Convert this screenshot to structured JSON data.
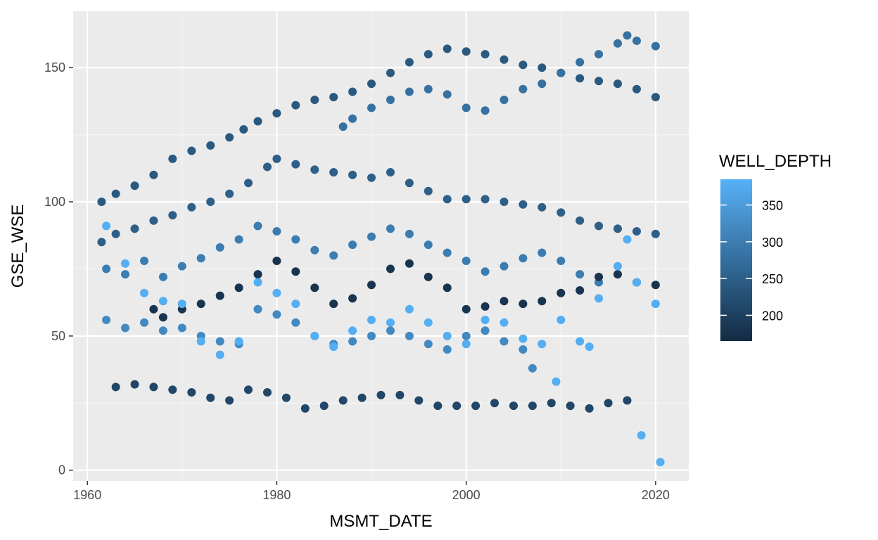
{
  "chart_data": {
    "type": "scatter",
    "title": "",
    "xlabel": "MSMT_DATE",
    "ylabel": "GSE_WSE",
    "xlim": [
      1958.5,
      2023.5
    ],
    "ylim": [
      -4,
      171
    ],
    "x_ticks": [
      1960,
      1980,
      2000,
      2020
    ],
    "y_ticks": [
      0,
      50,
      100,
      150
    ],
    "x_tick_labels": [
      "1960",
      "1980",
      "2000",
      "2020"
    ],
    "y_tick_labels": [
      "0",
      "50",
      "100",
      "150"
    ],
    "grid": true,
    "legend": {
      "title": "WELL_DEPTH",
      "placement": "right",
      "type": "colorbar",
      "range": [
        165,
        385
      ],
      "ticks": [
        200,
        250,
        300,
        350
      ],
      "tick_labels": [
        "200",
        "250",
        "300",
        "350"
      ],
      "low_color": "#132b43",
      "high_color": "#56b1f7"
    },
    "colors": {
      "panel_background": "#ebebeb",
      "grid_major": "#ffffff",
      "grid_minor": "#f5f5f5",
      "tick_text": "#4d4d4d"
    },
    "series": [
      {
        "depth": 240,
        "points": [
          [
            1961.5,
            100
          ],
          [
            1963,
            103
          ],
          [
            1965,
            106
          ],
          [
            1967,
            110
          ],
          [
            1969,
            116
          ],
          [
            1971,
            119
          ],
          [
            1973,
            121
          ],
          [
            1975,
            124
          ],
          [
            1976.5,
            127
          ],
          [
            1978,
            130
          ],
          [
            1980,
            133
          ],
          [
            1982,
            136
          ],
          [
            1984,
            138
          ],
          [
            1986,
            139
          ],
          [
            1988,
            141
          ],
          [
            1990,
            144
          ],
          [
            1992,
            148
          ],
          [
            1994,
            152
          ],
          [
            1996,
            155
          ],
          [
            1998,
            157
          ],
          [
            2000,
            156
          ],
          [
            2002,
            155
          ],
          [
            2004,
            153
          ],
          [
            2006,
            151
          ],
          [
            2008,
            150
          ],
          [
            2010,
            148
          ],
          [
            2012,
            146
          ],
          [
            2014,
            145
          ],
          [
            2016,
            144
          ],
          [
            2018,
            142
          ],
          [
            2020,
            139
          ]
        ]
      },
      {
        "depth": 280,
        "points": [
          [
            1987,
            128
          ],
          [
            1988,
            131
          ],
          [
            1990,
            135
          ],
          [
            1992,
            138
          ],
          [
            1994,
            141
          ],
          [
            1996,
            142
          ],
          [
            1998,
            140
          ],
          [
            2000,
            135
          ],
          [
            2002,
            134
          ],
          [
            2004,
            138
          ],
          [
            2006,
            142
          ],
          [
            2008,
            144
          ],
          [
            2010,
            148
          ],
          [
            2012,
            152
          ],
          [
            2014,
            155
          ],
          [
            2016,
            159
          ],
          [
            2017,
            162
          ],
          [
            2018,
            160
          ],
          [
            2020,
            158
          ]
        ]
      },
      {
        "depth": 250,
        "points": [
          [
            1961.5,
            85
          ],
          [
            1963,
            88
          ],
          [
            1965,
            90
          ],
          [
            1967,
            93
          ],
          [
            1969,
            95
          ],
          [
            1971,
            98
          ],
          [
            1973,
            100
          ],
          [
            1975,
            103
          ],
          [
            1977,
            107
          ],
          [
            1979,
            113
          ],
          [
            1980,
            116
          ],
          [
            1982,
            114
          ],
          [
            1984,
            112
          ],
          [
            1986,
            111
          ],
          [
            1988,
            110
          ],
          [
            1990,
            109
          ],
          [
            1992,
            111
          ],
          [
            1994,
            107
          ],
          [
            1996,
            104
          ],
          [
            1998,
            101
          ],
          [
            2000,
            101
          ],
          [
            2002,
            101
          ],
          [
            2004,
            100
          ],
          [
            2006,
            99
          ],
          [
            2008,
            98
          ],
          [
            2010,
            96
          ],
          [
            2012,
            93
          ],
          [
            2014,
            91
          ],
          [
            2016,
            90
          ],
          [
            2018,
            89
          ],
          [
            2020,
            88
          ]
        ]
      },
      {
        "depth": 300,
        "points": [
          [
            1962,
            75
          ],
          [
            1964,
            73
          ],
          [
            1966,
            78
          ],
          [
            1968,
            72
          ],
          [
            1970,
            76
          ],
          [
            1972,
            79
          ],
          [
            1974,
            83
          ],
          [
            1976,
            86
          ],
          [
            1978,
            91
          ],
          [
            1980,
            89
          ],
          [
            1982,
            86
          ],
          [
            1984,
            82
          ],
          [
            1986,
            80
          ],
          [
            1988,
            84
          ],
          [
            1990,
            87
          ],
          [
            1992,
            90
          ],
          [
            1994,
            88
          ],
          [
            1996,
            84
          ],
          [
            1998,
            81
          ],
          [
            2000,
            78
          ],
          [
            2002,
            74
          ],
          [
            2004,
            76
          ],
          [
            2006,
            79
          ],
          [
            2008,
            81
          ],
          [
            2010,
            78
          ],
          [
            2012,
            73
          ],
          [
            2014,
            70
          ]
        ]
      },
      {
        "depth": 320,
        "points": [
          [
            1962,
            56
          ],
          [
            1964,
            53
          ],
          [
            1966,
            55
          ],
          [
            1968,
            52
          ],
          [
            1970,
            53
          ],
          [
            1972,
            50
          ],
          [
            1974,
            48
          ],
          [
            1976,
            47
          ],
          [
            1978,
            60
          ],
          [
            1980,
            58
          ],
          [
            1982,
            55
          ],
          [
            1984,
            50
          ],
          [
            1986,
            47
          ],
          [
            1988,
            48
          ],
          [
            1990,
            50
          ],
          [
            1992,
            52
          ],
          [
            1994,
            50
          ],
          [
            1996,
            47
          ],
          [
            1998,
            45
          ],
          [
            2000,
            50
          ],
          [
            2002,
            52
          ],
          [
            2004,
            48
          ],
          [
            2006,
            45
          ],
          [
            2007,
            38
          ]
        ]
      },
      {
        "depth": 180,
        "points": [
          [
            1967,
            60
          ],
          [
            1968,
            57
          ],
          [
            1970,
            60
          ],
          [
            1972,
            62
          ],
          [
            1974,
            65
          ],
          [
            1976,
            68
          ],
          [
            1978,
            73
          ],
          [
            1980,
            78
          ],
          [
            1982,
            74
          ],
          [
            1984,
            68
          ],
          [
            1986,
            62
          ],
          [
            1988,
            64
          ],
          [
            1990,
            69
          ],
          [
            1992,
            75
          ],
          [
            1994,
            77
          ],
          [
            1996,
            72
          ],
          [
            1998,
            68
          ],
          [
            2000,
            60
          ],
          [
            2002,
            61
          ],
          [
            2004,
            63
          ],
          [
            2006,
            62
          ],
          [
            2008,
            63
          ],
          [
            2010,
            66
          ],
          [
            2012,
            67
          ],
          [
            2014,
            72
          ],
          [
            2016,
            73
          ],
          [
            2018,
            70
          ],
          [
            2020,
            69
          ]
        ]
      },
      {
        "depth": 380,
        "points": [
          [
            1962,
            91
          ],
          [
            1964,
            77
          ],
          [
            1966,
            66
          ],
          [
            1968,
            63
          ],
          [
            1970,
            62
          ],
          [
            1972,
            48
          ],
          [
            1974,
            43
          ],
          [
            1976,
            48
          ],
          [
            1978,
            70
          ],
          [
            1980,
            66
          ],
          [
            1982,
            62
          ],
          [
            1984,
            50
          ],
          [
            1986,
            46
          ],
          [
            1988,
            52
          ],
          [
            1990,
            56
          ],
          [
            1992,
            55
          ],
          [
            1994,
            60
          ],
          [
            1996,
            55
          ],
          [
            1998,
            50
          ],
          [
            2000,
            47
          ],
          [
            2002,
            56
          ],
          [
            2004,
            55
          ],
          [
            2006,
            49
          ],
          [
            2008,
            47
          ],
          [
            2010,
            56
          ],
          [
            2012,
            48
          ],
          [
            2013,
            46
          ],
          [
            2014,
            64
          ],
          [
            2016,
            76
          ],
          [
            2017,
            86
          ],
          [
            2018,
            70
          ],
          [
            2020,
            62
          ],
          [
            2009.5,
            33
          ],
          [
            2018.5,
            13
          ],
          [
            2020.5,
            3
          ]
        ]
      },
      {
        "depth": 210,
        "points": [
          [
            1963,
            31
          ],
          [
            1965,
            32
          ],
          [
            1967,
            31
          ],
          [
            1969,
            30
          ],
          [
            1971,
            29
          ],
          [
            1973,
            27
          ],
          [
            1975,
            26
          ],
          [
            1977,
            30
          ],
          [
            1979,
            29
          ],
          [
            1981,
            27
          ],
          [
            1983,
            23
          ],
          [
            1985,
            24
          ],
          [
            1987,
            26
          ],
          [
            1989,
            27
          ],
          [
            1991,
            28
          ],
          [
            1993,
            28
          ],
          [
            1995,
            26
          ],
          [
            1997,
            24
          ],
          [
            1999,
            24
          ],
          [
            2001,
            24
          ],
          [
            2003,
            25
          ],
          [
            2005,
            24
          ],
          [
            2007,
            24
          ],
          [
            2009,
            25
          ],
          [
            2011,
            24
          ],
          [
            2013,
            23
          ],
          [
            2015,
            25
          ],
          [
            2017,
            26
          ]
        ]
      }
    ]
  }
}
